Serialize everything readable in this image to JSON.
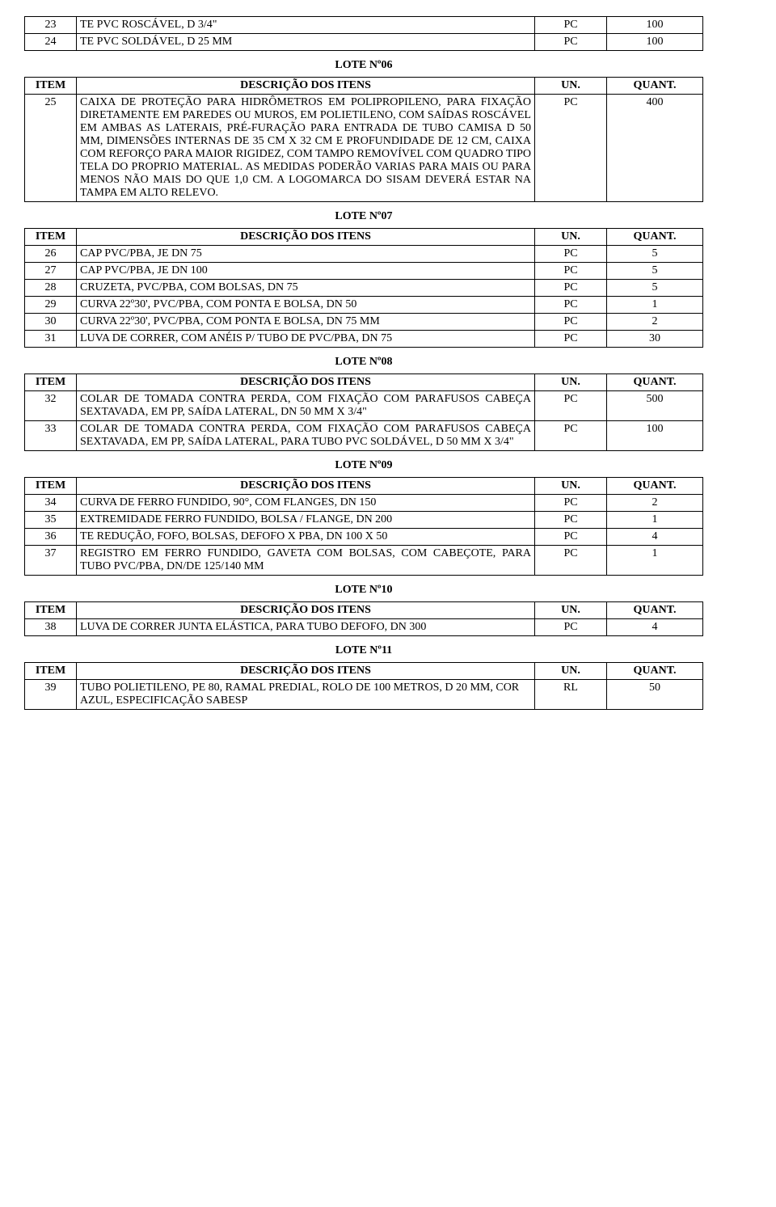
{
  "headers": {
    "item": "ITEM",
    "desc": "DESCRIÇÃO DOS ITENS",
    "un": "UN.",
    "quant": "QUANT."
  },
  "lotes": {
    "top_rows": [
      {
        "n": "23",
        "d": "TE PVC ROSCÁVEL, D 3/4\"",
        "u": "PC",
        "q": "100"
      },
      {
        "n": "24",
        "d": "TE PVC SOLDÁVEL, D 25 MM",
        "u": "PC",
        "q": "100"
      }
    ],
    "l06": {
      "title": "LOTE Nº06",
      "rows": [
        {
          "n": "25",
          "d": "CAIXA DE PROTEÇÃO PARA HIDRÔMETROS EM POLIPROPILENO, PARA FIXAÇÃO DIRETAMENTE EM PAREDES OU MUROS, EM POLIETILENO, COM SAÍDAS ROSCÁVEL EM AMBAS AS LATERAIS, PRÉ-FURAÇÃO PARA ENTRADA DE TUBO CAMISA D 50 MM, DIMENSÕES INTERNAS DE 35 CM X 32 CM E PROFUNDIDADE DE 12 CM, CAIXA COM REFORÇO PARA MAIOR RIGIDEZ, COM TAMPO REMOVÍVEL COM QUADRO TIPO TELA DO PROPRIO MATERIAL. AS MEDIDAS PODERÃO VARIAS PARA MAIS OU PARA MENOS NÃO MAIS DO QUE 1,0 CM. A LOGOMARCA DO SISAM DEVERÁ ESTAR NA TAMPA EM ALTO RELEVO.",
          "u": "PC",
          "q": "400"
        }
      ]
    },
    "l07": {
      "title": "LOTE Nº07",
      "rows": [
        {
          "n": "26",
          "d": "CAP PVC/PBA, JE DN 75",
          "u": "PC",
          "q": "5"
        },
        {
          "n": "27",
          "d": "CAP PVC/PBA, JE DN 100",
          "u": "PC",
          "q": "5"
        },
        {
          "n": "28",
          "d": "CRUZETA, PVC/PBA, COM BOLSAS, DN 75",
          "u": "PC",
          "q": "5"
        },
        {
          "n": "29",
          "d": "CURVA 22º30', PVC/PBA, COM PONTA E BOLSA, DN 50",
          "u": "PC",
          "q": "1"
        },
        {
          "n": "30",
          "d": "CURVA 22º30', PVC/PBA, COM PONTA E BOLSA, DN 75 MM",
          "u": "PC",
          "q": "2"
        },
        {
          "n": "31",
          "d": "LUVA DE CORRER, COM ANÉIS P/ TUBO DE PVC/PBA, DN 75",
          "u": "PC",
          "q": "30"
        }
      ]
    },
    "l08": {
      "title": "LOTE Nº08",
      "rows": [
        {
          "n": "32",
          "d": "COLAR DE TOMADA CONTRA PERDA, COM FIXAÇÃO COM PARAFUSOS CABEÇA SEXTAVADA, EM PP, SAÍDA LATERAL, DN 50 MM X 3/4\"",
          "u": "PC",
          "q": "500"
        },
        {
          "n": "33",
          "d": "COLAR DE TOMADA CONTRA PERDA, COM FIXAÇÃO COM PARAFUSOS CABEÇA SEXTAVADA, EM PP, SAÍDA LATERAL, PARA TUBO PVC SOLDÁVEL, D 50 MM X 3/4\"",
          "u": "PC",
          "q": "100"
        }
      ]
    },
    "l09": {
      "title": "LOTE Nº09",
      "rows": [
        {
          "n": "34",
          "d": "CURVA DE FERRO FUNDIDO, 90°, COM FLANGES, DN 150",
          "u": "PC",
          "q": "2"
        },
        {
          "n": "35",
          "d": "EXTREMIDADE FERRO FUNDIDO, BOLSA / FLANGE, DN 200",
          "u": "PC",
          "q": "1"
        },
        {
          "n": "36",
          "d": "TE REDUÇÃO, FOFO, BOLSAS, DEFOFO X PBA, DN 100 X 50",
          "u": "PC",
          "q": "4"
        },
        {
          "n": "37",
          "d": "REGISTRO EM FERRO FUNDIDO, GAVETA COM BOLSAS, COM CABEÇOTE, PARA TUBO PVC/PBA, DN/DE 125/140 MM",
          "u": "PC",
          "q": "1"
        }
      ]
    },
    "l10": {
      "title": "LOTE Nº10",
      "rows": [
        {
          "n": "38",
          "d": "LUVA DE CORRER JUNTA ELÁSTICA, PARA TUBO DEFOFO, DN 300",
          "u": "PC",
          "q": "4"
        }
      ]
    },
    "l11": {
      "title": "LOTE Nº11",
      "rows": [
        {
          "n": "39",
          "d": "TUBO POLIETILENO, PE 80, RAMAL PREDIAL, ROLO DE 100 METROS, D 20 MM, COR AZUL, ESPECIFICAÇÃO SABESP",
          "u": "RL",
          "q": "50"
        }
      ]
    }
  }
}
